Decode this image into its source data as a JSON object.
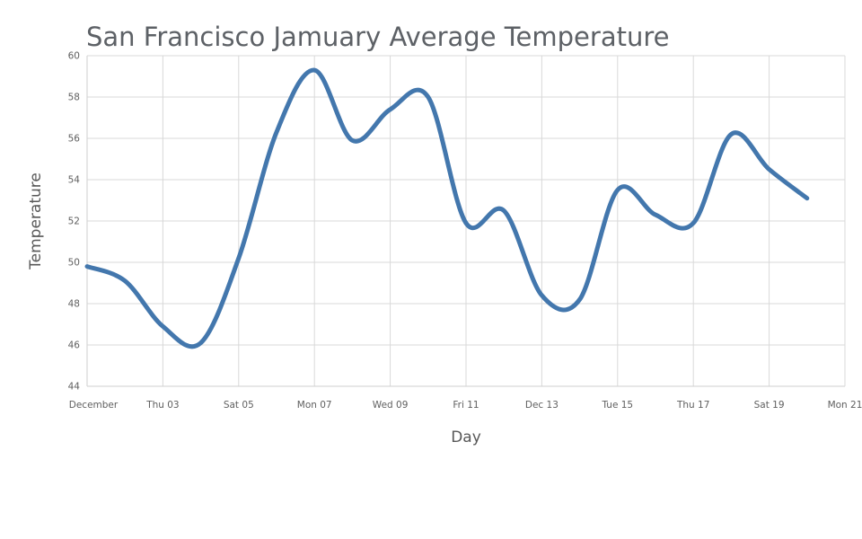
{
  "title": "San Francisco Jamuary Average Temperature",
  "x_axis": {
    "title": "Day",
    "tick_days": [
      1,
      3,
      5,
      7,
      9,
      11,
      13,
      15,
      17,
      19,
      21
    ],
    "tick_labels": [
      "December",
      "Thu 03",
      "Sat 05",
      "Mon 07",
      "Wed 09",
      "Fri 11",
      "Dec 13",
      "Tue 15",
      "Thu 17",
      "Sat 19",
      "Mon 21"
    ]
  },
  "y_axis": {
    "title": "Temperature",
    "ticks": [
      44,
      46,
      48,
      50,
      52,
      54,
      56,
      58,
      60
    ],
    "range": [
      44,
      60
    ]
  },
  "colors": {
    "line": "#4377ad",
    "grid": "#d9d9d9",
    "axis_line": "#cfcfcf",
    "tick_text": "#606060",
    "axis_title_text": "#575757",
    "title_text": "#5d6166",
    "background": "#ffffff"
  },
  "chart_data": {
    "type": "line",
    "line_shape": "spline",
    "title": "San Francisco Jamuary Average Temperature",
    "xlabel": "Day",
    "ylabel": "Temperature",
    "x": [
      "Dec 01",
      "Dec 02",
      "Dec 03",
      "Dec 04",
      "Dec 05",
      "Dec 06",
      "Dec 07",
      "Dec 08",
      "Dec 09",
      "Dec 10",
      "Dec 11",
      "Dec 12",
      "Dec 13",
      "Dec 14",
      "Dec 15",
      "Dec 16",
      "Dec 17",
      "Dec 18",
      "Dec 19",
      "Dec 20"
    ],
    "x_day_index": [
      1,
      2,
      3,
      4,
      5,
      6,
      7,
      8,
      9,
      10,
      11,
      12,
      13,
      14,
      15,
      16,
      17,
      18,
      19,
      20
    ],
    "values": [
      49.8,
      49.1,
      46.9,
      46.1,
      50.2,
      56.3,
      59.3,
      55.9,
      57.4,
      58.0,
      51.9,
      52.5,
      48.4,
      48.2,
      53.5,
      52.3,
      51.9,
      56.2,
      54.5,
      53.1
    ],
    "ylim": [
      44,
      60
    ],
    "xticks": [
      "December",
      "Thu 03",
      "Sat 05",
      "Mon 07",
      "Wed 09",
      "Fri 11",
      "Dec 13",
      "Tue 15",
      "Thu 17",
      "Sat 19",
      "Mon 21"
    ],
    "grid": true,
    "legend": false,
    "marker": "none",
    "line_width": 5
  }
}
